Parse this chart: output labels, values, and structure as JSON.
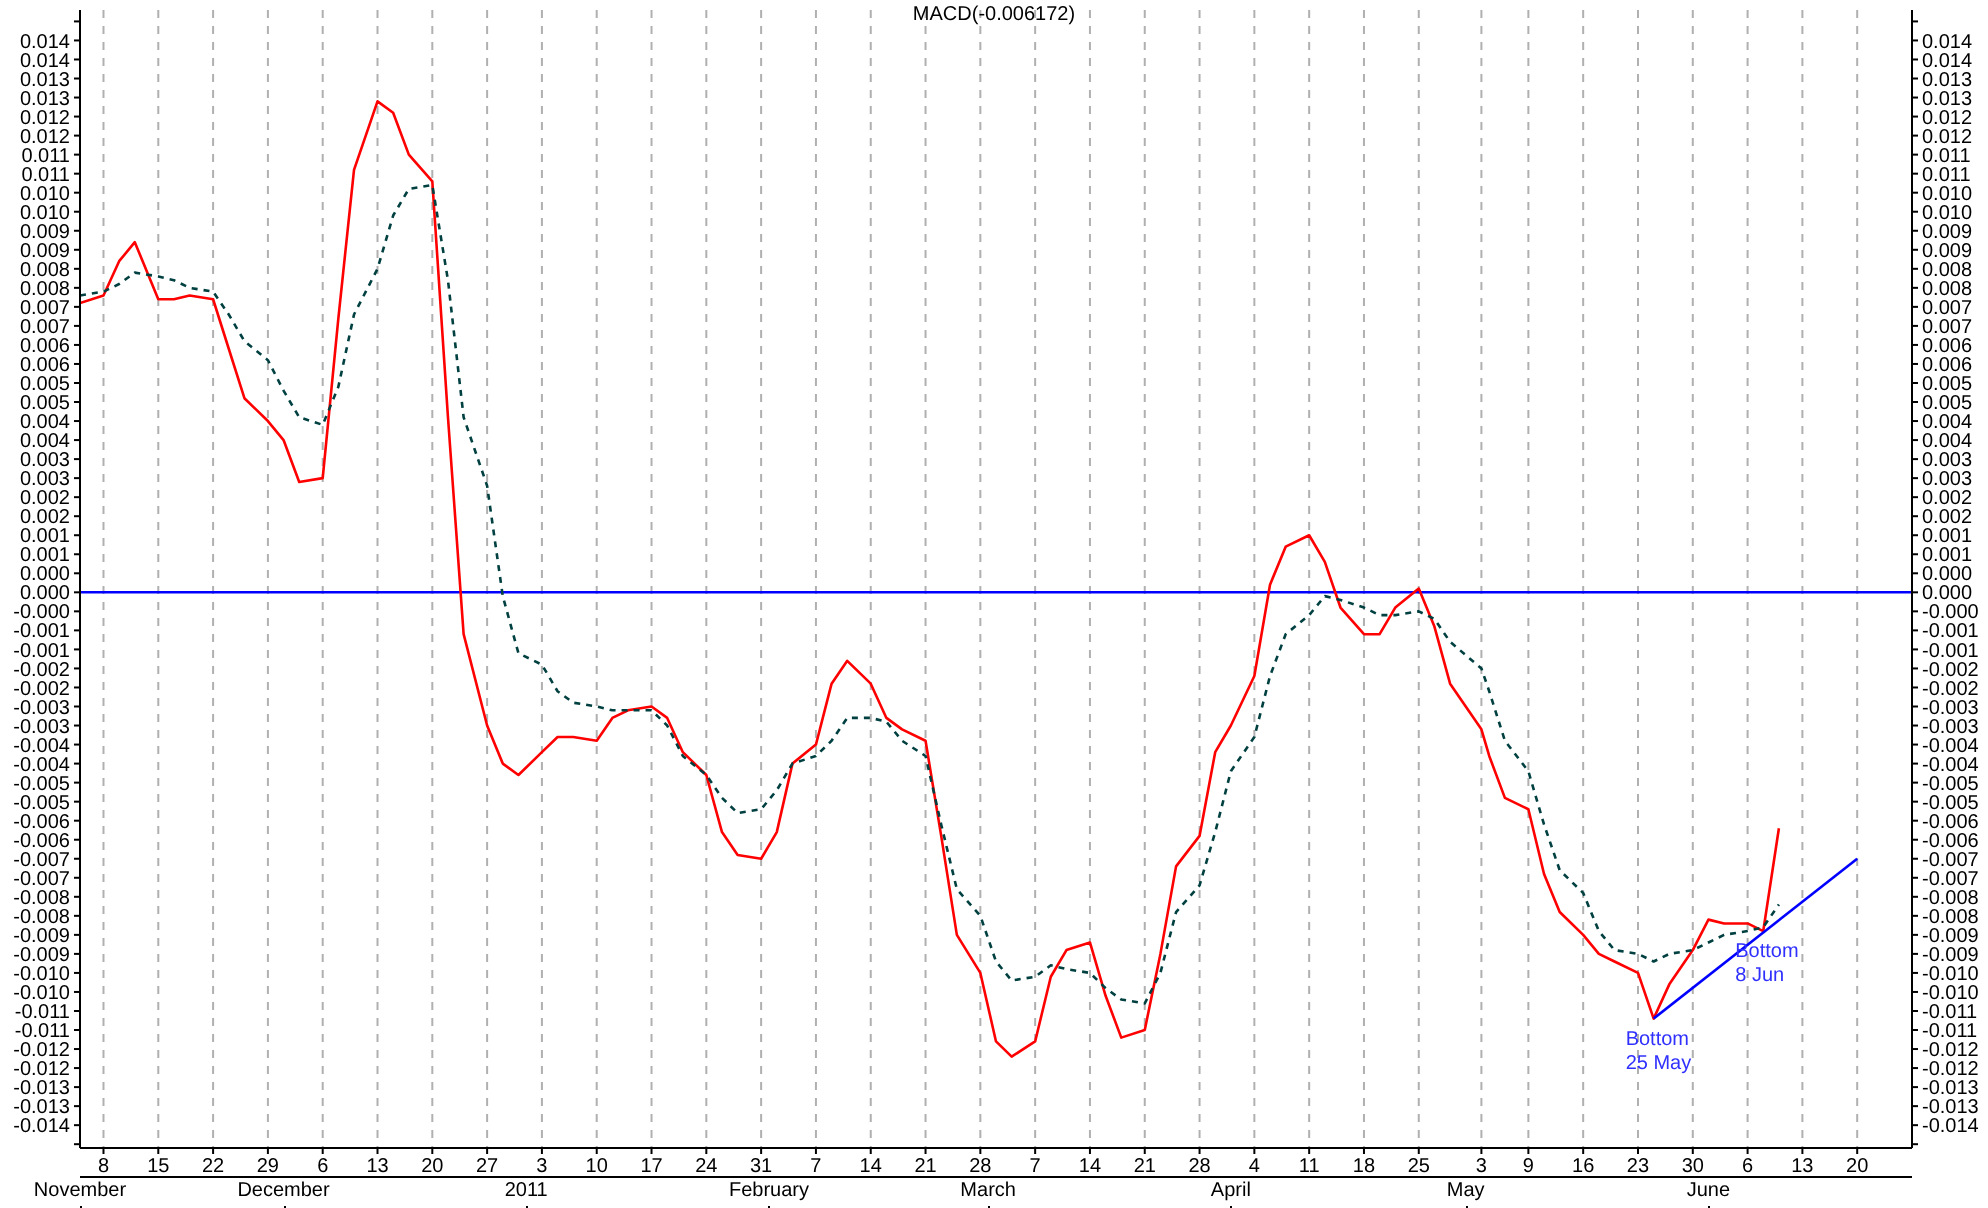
{
  "chart_data": {
    "type": "line",
    "title": "MACD(-0.006172)",
    "x": [
      "2010-11-05",
      "2010-11-08",
      "2010-11-10",
      "2010-11-12",
      "2010-11-15",
      "2010-11-17",
      "2010-11-19",
      "2010-11-22",
      "2010-11-24",
      "2010-11-26",
      "2010-11-29",
      "2010-12-01",
      "2010-12-03",
      "2010-12-06",
      "2010-12-08",
      "2010-12-10",
      "2010-12-13",
      "2010-12-15",
      "2010-12-17",
      "2010-12-20",
      "2010-12-22",
      "2010-12-24",
      "2010-12-27",
      "2010-12-29",
      "2010-12-31",
      "2011-01-03",
      "2011-01-05",
      "2011-01-07",
      "2011-01-10",
      "2011-01-12",
      "2011-01-14",
      "2011-01-17",
      "2011-01-19",
      "2011-01-21",
      "2011-01-24",
      "2011-01-26",
      "2011-01-28",
      "2011-01-31",
      "2011-02-02",
      "2011-02-04",
      "2011-02-07",
      "2011-02-09",
      "2011-02-11",
      "2011-02-14",
      "2011-02-16",
      "2011-02-18",
      "2011-02-21",
      "2011-02-23",
      "2011-02-25",
      "2011-02-28",
      "2011-03-02",
      "2011-03-04",
      "2011-03-07",
      "2011-03-09",
      "2011-03-11",
      "2011-03-14",
      "2011-03-16",
      "2011-03-18",
      "2011-03-21",
      "2011-03-23",
      "2011-03-25",
      "2011-03-28",
      "2011-03-30",
      "2011-04-01",
      "2011-04-04",
      "2011-04-06",
      "2011-04-08",
      "2011-04-11",
      "2011-04-13",
      "2011-04-15",
      "2011-04-18",
      "2011-04-20",
      "2011-04-22",
      "2011-04-25",
      "2011-04-27",
      "2011-04-29",
      "2011-05-03",
      "2011-05-04",
      "2011-05-06",
      "2011-05-09",
      "2011-05-11",
      "2011-05-13",
      "2011-05-16",
      "2011-05-18",
      "2011-05-20",
      "2011-05-23",
      "2011-05-25",
      "2011-05-27",
      "2011-05-30",
      "2011-06-01",
      "2011-06-03",
      "2011-06-06",
      "2011-06-08",
      "2011-06-10"
    ],
    "series": [
      {
        "color": "#ff0000",
        "line_style": "solid",
        "values": [
          0.0076,
          0.0078,
          0.0087,
          0.0092,
          0.0077,
          0.0077,
          0.0078,
          0.0077,
          0.0064,
          0.0051,
          0.0045,
          0.004,
          0.0029,
          0.003,
          0.0072,
          0.0111,
          0.0129,
          0.0126,
          0.0115,
          0.0108,
          0.0046,
          -0.0011,
          -0.0035,
          -0.0045,
          -0.0048,
          -0.0042,
          -0.0038,
          -0.0038,
          -0.0039,
          -0.0033,
          -0.0031,
          -0.003,
          -0.0033,
          -0.0042,
          -0.0048,
          -0.0063,
          -0.0069,
          -0.007,
          -0.0063,
          -0.0045,
          -0.004,
          -0.0024,
          -0.0018,
          -0.0024,
          -0.0033,
          -0.0036,
          -0.0039,
          -0.0064,
          -0.009,
          -0.01,
          -0.0118,
          -0.0122,
          -0.0118,
          -0.0101,
          -0.0094,
          -0.0092,
          -0.0106,
          -0.0117,
          -0.0115,
          -0.0095,
          -0.0072,
          -0.0064,
          -0.0042,
          -0.0035,
          -0.0022,
          0.0002,
          0.0012,
          0.0015,
          0.0008,
          -0.0004,
          -0.0011,
          -0.0011,
          -0.0004,
          0.0001,
          -0.0009,
          -0.0024,
          -0.0036,
          -0.0043,
          -0.0054,
          -0.0057,
          -0.0074,
          -0.0084,
          -0.009,
          -0.0095,
          -0.0097,
          -0.01,
          -0.0112,
          -0.0103,
          -0.0094,
          -0.0086,
          -0.0087,
          -0.0087,
          -0.0089,
          -0.0062
        ]
      },
      {
        "color": "#004040",
        "line_style": "dashed",
        "values": [
          0.0078,
          0.0079,
          0.0081,
          0.0084,
          0.0083,
          0.0082,
          0.008,
          0.0079,
          0.0073,
          0.0066,
          0.0061,
          0.0053,
          0.0046,
          0.0044,
          0.0054,
          0.0073,
          0.0085,
          0.0099,
          0.0106,
          0.0107,
          0.0082,
          0.0046,
          0.0028,
          -0.0001,
          -0.0016,
          -0.0019,
          -0.0026,
          -0.0029,
          -0.003,
          -0.0031,
          -0.0031,
          -0.0031,
          -0.0035,
          -0.0043,
          -0.0048,
          -0.0054,
          -0.0058,
          -0.0057,
          -0.0052,
          -0.0045,
          -0.0043,
          -0.0039,
          -0.0033,
          -0.0033,
          -0.0034,
          -0.0039,
          -0.0043,
          -0.0061,
          -0.0078,
          -0.0085,
          -0.0097,
          -0.0102,
          -0.0101,
          -0.0098,
          -0.0099,
          -0.01,
          -0.0104,
          -0.0107,
          -0.0108,
          -0.01,
          -0.0084,
          -0.0077,
          -0.0063,
          -0.0047,
          -0.0038,
          -0.0022,
          -0.0011,
          -0.0006,
          -0.0001,
          -0.0002,
          -0.0004,
          -0.0006,
          -0.0006,
          -0.0005,
          -0.0007,
          -0.0013,
          -0.002,
          -0.0026,
          -0.0039,
          -0.0047,
          -0.0061,
          -0.0073,
          -0.0079,
          -0.0089,
          -0.0094,
          -0.0095,
          -0.0097,
          -0.0095,
          -0.0094,
          -0.0092,
          -0.009,
          -0.0089,
          -0.0088,
          -0.0082
        ]
      },
      {
        "type": "line",
        "color": "#0000ff",
        "line_style": "solid",
        "x": [
          "2011-05-25",
          "2011-06-20"
        ],
        "values": [
          -0.0112,
          -0.007
        ]
      }
    ],
    "ref_lines": [
      {
        "axis": "y",
        "value": 0,
        "color": "#0000ff"
      }
    ],
    "annotations": [
      {
        "text": "Bottom\n25 May",
        "x": "2011-05-25",
        "y": -0.0112
      },
      {
        "text": "Bottom\n8  Jun",
        "x": "2011-06-08",
        "y": -0.0089
      }
    ],
    "marker": "none",
    "grid": "x",
    "xlim": [
      "2010-11-05",
      "2011-06-27"
    ],
    "xticks": [
      {
        "value": "2010-11-08",
        "label": "8"
      },
      {
        "value": "2010-11-15",
        "label": "15"
      },
      {
        "value": "2010-11-22",
        "label": "22"
      },
      {
        "value": "2010-11-29",
        "label": "29"
      },
      {
        "value": "2010-12-06",
        "label": "6"
      },
      {
        "value": "2010-12-13",
        "label": "13"
      },
      {
        "value": "2010-12-20",
        "label": "20"
      },
      {
        "value": "2010-12-27",
        "label": "27"
      },
      {
        "value": "2011-01-03",
        "label": "3"
      },
      {
        "value": "2011-01-10",
        "label": "10"
      },
      {
        "value": "2011-01-17",
        "label": "17"
      },
      {
        "value": "2011-01-24",
        "label": "24"
      },
      {
        "value": "2011-01-31",
        "label": "31"
      },
      {
        "value": "2011-02-07",
        "label": "7"
      },
      {
        "value": "2011-02-14",
        "label": "14"
      },
      {
        "value": "2011-02-21",
        "label": "21"
      },
      {
        "value": "2011-02-28",
        "label": "28"
      },
      {
        "value": "2011-03-07",
        "label": "7"
      },
      {
        "value": "2011-03-14",
        "label": "14"
      },
      {
        "value": "2011-03-21",
        "label": "21"
      },
      {
        "value": "2011-03-28",
        "label": "28"
      },
      {
        "value": "2011-04-04",
        "label": "4"
      },
      {
        "value": "2011-04-11",
        "label": "11"
      },
      {
        "value": "2011-04-18",
        "label": "18"
      },
      {
        "value": "2011-04-25",
        "label": "25"
      },
      {
        "value": "2011-05-03",
        "label": "3"
      },
      {
        "value": "2011-05-09",
        "label": "9"
      },
      {
        "value": "2011-05-16",
        "label": "16"
      },
      {
        "value": "2011-05-23",
        "label": "23"
      },
      {
        "value": "2011-05-30",
        "label": "30"
      },
      {
        "value": "2011-06-06",
        "label": "6"
      },
      {
        "value": "2011-06-13",
        "label": "13"
      },
      {
        "value": "2011-06-20",
        "label": "20"
      }
    ],
    "x2lim": [
      "2010-11-05",
      "2011-06-27"
    ],
    "x2ticks": [
      {
        "value": "2010-11-05",
        "label": "November"
      },
      {
        "value": "2010-12-01",
        "label": "December"
      },
      {
        "value": "2011-01-01",
        "label": "2011"
      },
      {
        "value": "2011-02-01",
        "label": "February"
      },
      {
        "value": "2011-03-01",
        "label": "March"
      },
      {
        "value": "2011-04-01",
        "label": "April"
      },
      {
        "value": "2011-05-01",
        "label": "May"
      },
      {
        "value": "2011-06-01",
        "label": "June"
      }
    ],
    "ylim": [
      -0.0146,
      0.0153
    ],
    "yticks": [
      {
        "value": 0.015,
        "label": null
      },
      {
        "value": 0.0145,
        "label": "0.014"
      },
      {
        "value": 0.014,
        "label": "0.014"
      },
      {
        "value": 0.0135,
        "label": "0.013"
      },
      {
        "value": 0.013,
        "label": "0.013"
      },
      {
        "value": 0.0125,
        "label": "0.012"
      },
      {
        "value": 0.012,
        "label": "0.012"
      },
      {
        "value": 0.0115,
        "label": "0.011"
      },
      {
        "value": 0.011,
        "label": "0.011"
      },
      {
        "value": 0.0105,
        "label": "0.010"
      },
      {
        "value": 0.01,
        "label": "0.010"
      },
      {
        "value": 0.0095,
        "label": "0.009"
      },
      {
        "value": 0.009,
        "label": "0.009"
      },
      {
        "value": 0.0085,
        "label": "0.008"
      },
      {
        "value": 0.008,
        "label": "0.008"
      },
      {
        "value": 0.0075,
        "label": "0.007"
      },
      {
        "value": 0.007,
        "label": "0.007"
      },
      {
        "value": 0.0065,
        "label": "0.006"
      },
      {
        "value": 0.006,
        "label": "0.006"
      },
      {
        "value": 0.0055,
        "label": "0.005"
      },
      {
        "value": 0.005,
        "label": "0.005"
      },
      {
        "value": 0.0045,
        "label": "0.004"
      },
      {
        "value": 0.004,
        "label": "0.004"
      },
      {
        "value": 0.0035,
        "label": "0.003"
      },
      {
        "value": 0.003,
        "label": "0.003"
      },
      {
        "value": 0.0025,
        "label": "0.002"
      },
      {
        "value": 0.002,
        "label": "0.002"
      },
      {
        "value": 0.0015,
        "label": "0.001"
      },
      {
        "value": 0.001,
        "label": "0.001"
      },
      {
        "value": 0.0005,
        "label": "0.000"
      },
      {
        "value": 0,
        "label": "0.000"
      },
      {
        "value": -0.0005,
        "label": "-0.000"
      },
      {
        "value": -0.001,
        "label": "-0.001"
      },
      {
        "value": -0.0015,
        "label": "-0.001"
      },
      {
        "value": -0.002,
        "label": "-0.002"
      },
      {
        "value": -0.0025,
        "label": "-0.002"
      },
      {
        "value": -0.003,
        "label": "-0.003"
      },
      {
        "value": -0.0035,
        "label": "-0.003"
      },
      {
        "value": -0.004,
        "label": "-0.004"
      },
      {
        "value": -0.0045,
        "label": "-0.004"
      },
      {
        "value": -0.005,
        "label": "-0.005"
      },
      {
        "value": -0.0055,
        "label": "-0.005"
      },
      {
        "value": -0.006,
        "label": "-0.006"
      },
      {
        "value": -0.0065,
        "label": "-0.006"
      },
      {
        "value": -0.007,
        "label": "-0.007"
      },
      {
        "value": -0.0075,
        "label": "-0.007"
      },
      {
        "value": -0.008,
        "label": "-0.008"
      },
      {
        "value": -0.0085,
        "label": "-0.008"
      },
      {
        "value": -0.009,
        "label": "-0.009"
      },
      {
        "value": -0.0095,
        "label": "-0.009"
      },
      {
        "value": -0.01,
        "label": "-0.010"
      },
      {
        "value": -0.0105,
        "label": "-0.010"
      },
      {
        "value": -0.011,
        "label": "-0.011"
      },
      {
        "value": -0.0115,
        "label": "-0.011"
      },
      {
        "value": -0.012,
        "label": "-0.012"
      },
      {
        "value": -0.0125,
        "label": "-0.012"
      },
      {
        "value": -0.013,
        "label": "-0.013"
      },
      {
        "value": -0.0135,
        "label": "-0.013"
      },
      {
        "value": -0.014,
        "label": "-0.014"
      },
      {
        "value": -0.0145,
        "label": null
      }
    ],
    "y2lim": [
      -0.0146,
      0.0153
    ],
    "y2ticks": [
      {
        "value": 0.015,
        "label": null
      },
      {
        "value": 0.0145,
        "label": "0.014"
      },
      {
        "value": 0.014,
        "label": "0.014"
      },
      {
        "value": 0.0135,
        "label": "0.013"
      },
      {
        "value": 0.013,
        "label": "0.013"
      },
      {
        "value": 0.0125,
        "label": "0.012"
      },
      {
        "value": 0.012,
        "label": "0.012"
      },
      {
        "value": 0.0115,
        "label": "0.011"
      },
      {
        "value": 0.011,
        "label": "0.011"
      },
      {
        "value": 0.0105,
        "label": "0.010"
      },
      {
        "value": 0.01,
        "label": "0.010"
      },
      {
        "value": 0.0095,
        "label": "0.009"
      },
      {
        "value": 0.009,
        "label": "0.009"
      },
      {
        "value": 0.0085,
        "label": "0.008"
      },
      {
        "value": 0.008,
        "label": "0.008"
      },
      {
        "value": 0.0075,
        "label": "0.007"
      },
      {
        "value": 0.007,
        "label": "0.007"
      },
      {
        "value": 0.0065,
        "label": "0.006"
      },
      {
        "value": 0.006,
        "label": "0.006"
      },
      {
        "value": 0.0055,
        "label": "0.005"
      },
      {
        "value": 0.005,
        "label": "0.005"
      },
      {
        "value": 0.0045,
        "label": "0.004"
      },
      {
        "value": 0.004,
        "label": "0.004"
      },
      {
        "value": 0.0035,
        "label": "0.003"
      },
      {
        "value": 0.003,
        "label": "0.003"
      },
      {
        "value": 0.0025,
        "label": "0.002"
      },
      {
        "value": 0.002,
        "label": "0.002"
      },
      {
        "value": 0.0015,
        "label": "0.001"
      },
      {
        "value": 0.001,
        "label": "0.001"
      },
      {
        "value": 0.0005,
        "label": "0.000"
      },
      {
        "value": 0,
        "label": "0.000"
      },
      {
        "value": -0.0005,
        "label": "-0.000"
      },
      {
        "value": -0.001,
        "label": "-0.001"
      },
      {
        "value": -0.0015,
        "label": "-0.001"
      },
      {
        "value": -0.002,
        "label": "-0.002"
      },
      {
        "value": -0.0025,
        "label": "-0.002"
      },
      {
        "value": -0.003,
        "label": "-0.003"
      },
      {
        "value": -0.0035,
        "label": "-0.003"
      },
      {
        "value": -0.004,
        "label": "-0.004"
      },
      {
        "value": -0.0045,
        "label": "-0.004"
      },
      {
        "value": -0.005,
        "label": "-0.005"
      },
      {
        "value": -0.0055,
        "label": "-0.005"
      },
      {
        "value": -0.006,
        "label": "-0.006"
      },
      {
        "value": -0.0065,
        "label": "-0.006"
      },
      {
        "value": -0.007,
        "label": "-0.007"
      },
      {
        "value": -0.0075,
        "label": "-0.007"
      },
      {
        "value": -0.008,
        "label": "-0.008"
      },
      {
        "value": -0.0085,
        "label": "-0.008"
      },
      {
        "value": -0.009,
        "label": "-0.009"
      },
      {
        "value": -0.0095,
        "label": "-0.009"
      },
      {
        "value": -0.01,
        "label": "-0.010"
      },
      {
        "value": -0.0105,
        "label": "-0.010"
      },
      {
        "value": -0.011,
        "label": "-0.011"
      },
      {
        "value": -0.0115,
        "label": "-0.011"
      },
      {
        "value": -0.012,
        "label": "-0.012"
      },
      {
        "value": -0.0125,
        "label": "-0.012"
      },
      {
        "value": -0.013,
        "label": "-0.013"
      },
      {
        "value": -0.0135,
        "label": "-0.013"
      },
      {
        "value": -0.014,
        "label": "-0.014"
      },
      {
        "value": -0.0145,
        "label": null
      }
    ]
  }
}
